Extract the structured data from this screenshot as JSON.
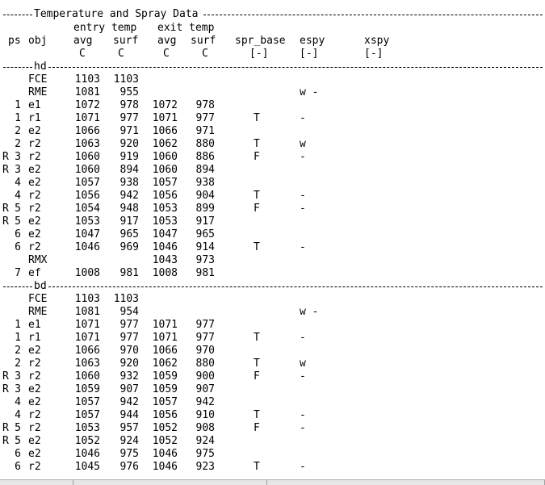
{
  "title": "Temperature and Spray Data",
  "headers": {
    "row1": {
      "entry": "entry temp",
      "exit": "exit temp"
    },
    "row2": {
      "ps": "ps",
      "obj": "obj",
      "avg": "avg",
      "surf": "surf",
      "xavg": "avg",
      "xsurf": "surf",
      "spr_base": "spr_base",
      "espy": "espy",
      "xspy": "xspy"
    },
    "row3": {
      "c1": "C",
      "c2": "C",
      "c3": "C",
      "c4": "C",
      "u1": "[-]",
      "u2": "[-]",
      "u3": "[-]"
    }
  },
  "sections": [
    {
      "label": "hd",
      "rows": [
        {
          "r": "",
          "ps": "",
          "obj": "FCE",
          "ea": "1103",
          "es": "1103",
          "xa": "",
          "xs": "",
          "spr": "",
          "espy": "",
          "xspy": ""
        },
        {
          "r": "",
          "ps": "",
          "obj": "RME",
          "ea": "1081",
          "es": "955",
          "xa": "",
          "xs": "",
          "spr": "",
          "espy": "w -",
          "xspy": ""
        },
        {
          "r": "",
          "ps": "1",
          "obj": "e1",
          "ea": "1072",
          "es": "978",
          "xa": "1072",
          "xs": "978",
          "spr": "",
          "espy": "",
          "xspy": ""
        },
        {
          "r": "",
          "ps": "1",
          "obj": "r1",
          "ea": "1071",
          "es": "977",
          "xa": "1071",
          "xs": "977",
          "spr": "T",
          "espy": "-",
          "xspy": ""
        },
        {
          "r": "",
          "ps": "2",
          "obj": "e2",
          "ea": "1066",
          "es": "971",
          "xa": "1066",
          "xs": "971",
          "spr": "",
          "espy": "",
          "xspy": ""
        },
        {
          "r": "",
          "ps": "2",
          "obj": "r2",
          "ea": "1063",
          "es": "920",
          "xa": "1062",
          "xs": "880",
          "spr": "T",
          "espy": "w",
          "xspy": ""
        },
        {
          "r": "R",
          "ps": "3",
          "obj": "r2",
          "ea": "1060",
          "es": "919",
          "xa": "1060",
          "xs": "886",
          "spr": "F",
          "espy": "-",
          "xspy": ""
        },
        {
          "r": "R",
          "ps": "3",
          "obj": "e2",
          "ea": "1060",
          "es": "894",
          "xa": "1060",
          "xs": "894",
          "spr": "",
          "espy": "",
          "xspy": ""
        },
        {
          "r": "",
          "ps": "4",
          "obj": "e2",
          "ea": "1057",
          "es": "938",
          "xa": "1057",
          "xs": "938",
          "spr": "",
          "espy": "",
          "xspy": ""
        },
        {
          "r": "",
          "ps": "4",
          "obj": "r2",
          "ea": "1056",
          "es": "942",
          "xa": "1056",
          "xs": "904",
          "spr": "T",
          "espy": "-",
          "xspy": ""
        },
        {
          "r": "R",
          "ps": "5",
          "obj": "r2",
          "ea": "1054",
          "es": "948",
          "xa": "1053",
          "xs": "899",
          "spr": "F",
          "espy": "-",
          "xspy": ""
        },
        {
          "r": "R",
          "ps": "5",
          "obj": "e2",
          "ea": "1053",
          "es": "917",
          "xa": "1053",
          "xs": "917",
          "spr": "",
          "espy": "",
          "xspy": ""
        },
        {
          "r": "",
          "ps": "6",
          "obj": "e2",
          "ea": "1047",
          "es": "965",
          "xa": "1047",
          "xs": "965",
          "spr": "",
          "espy": "",
          "xspy": ""
        },
        {
          "r": "",
          "ps": "6",
          "obj": "r2",
          "ea": "1046",
          "es": "969",
          "xa": "1046",
          "xs": "914",
          "spr": "T",
          "espy": "-",
          "xspy": ""
        },
        {
          "r": "",
          "ps": "",
          "obj": "RMX",
          "ea": "",
          "es": "",
          "xa": "1043",
          "xs": "973",
          "spr": "",
          "espy": "",
          "xspy": ""
        },
        {
          "r": "",
          "ps": "7",
          "obj": "ef",
          "ea": "1008",
          "es": "981",
          "xa": "1008",
          "xs": "981",
          "spr": "",
          "espy": "",
          "xspy": ""
        }
      ]
    },
    {
      "label": "bd",
      "rows": [
        {
          "r": "",
          "ps": "",
          "obj": "FCE",
          "ea": "1103",
          "es": "1103",
          "xa": "",
          "xs": "",
          "spr": "",
          "espy": "",
          "xspy": ""
        },
        {
          "r": "",
          "ps": "",
          "obj": "RME",
          "ea": "1081",
          "es": "954",
          "xa": "",
          "xs": "",
          "spr": "",
          "espy": "w -",
          "xspy": ""
        },
        {
          "r": "",
          "ps": "1",
          "obj": "e1",
          "ea": "1071",
          "es": "977",
          "xa": "1071",
          "xs": "977",
          "spr": "",
          "espy": "",
          "xspy": ""
        },
        {
          "r": "",
          "ps": "1",
          "obj": "r1",
          "ea": "1071",
          "es": "977",
          "xa": "1071",
          "xs": "977",
          "spr": "T",
          "espy": "-",
          "xspy": ""
        },
        {
          "r": "",
          "ps": "2",
          "obj": "e2",
          "ea": "1066",
          "es": "970",
          "xa": "1066",
          "xs": "970",
          "spr": "",
          "espy": "",
          "xspy": ""
        },
        {
          "r": "",
          "ps": "2",
          "obj": "r2",
          "ea": "1063",
          "es": "920",
          "xa": "1062",
          "xs": "880",
          "spr": "T",
          "espy": "w",
          "xspy": ""
        },
        {
          "r": "R",
          "ps": "3",
          "obj": "r2",
          "ea": "1060",
          "es": "932",
          "xa": "1059",
          "xs": "900",
          "spr": "F",
          "espy": "-",
          "xspy": ""
        },
        {
          "r": "R",
          "ps": "3",
          "obj": "e2",
          "ea": "1059",
          "es": "907",
          "xa": "1059",
          "xs": "907",
          "spr": "",
          "espy": "",
          "xspy": ""
        },
        {
          "r": "",
          "ps": "4",
          "obj": "e2",
          "ea": "1057",
          "es": "942",
          "xa": "1057",
          "xs": "942",
          "spr": "",
          "espy": "",
          "xspy": ""
        },
        {
          "r": "",
          "ps": "4",
          "obj": "r2",
          "ea": "1057",
          "es": "944",
          "xa": "1056",
          "xs": "910",
          "spr": "T",
          "espy": "-",
          "xspy": ""
        },
        {
          "r": "R",
          "ps": "5",
          "obj": "r2",
          "ea": "1053",
          "es": "957",
          "xa": "1052",
          "xs": "908",
          "spr": "F",
          "espy": "-",
          "xspy": ""
        },
        {
          "r": "R",
          "ps": "5",
          "obj": "e2",
          "ea": "1052",
          "es": "924",
          "xa": "1052",
          "xs": "924",
          "spr": "",
          "espy": "",
          "xspy": ""
        },
        {
          "r": "",
          "ps": "6",
          "obj": "e2",
          "ea": "1046",
          "es": "975",
          "xa": "1046",
          "xs": "975",
          "spr": "",
          "espy": "",
          "xspy": ""
        },
        {
          "r": "",
          "ps": "6",
          "obj": "r2",
          "ea": "1045",
          "es": "976",
          "xa": "1046",
          "xs": "923",
          "spr": "T",
          "espy": "-",
          "xspy": ""
        }
      ]
    }
  ]
}
